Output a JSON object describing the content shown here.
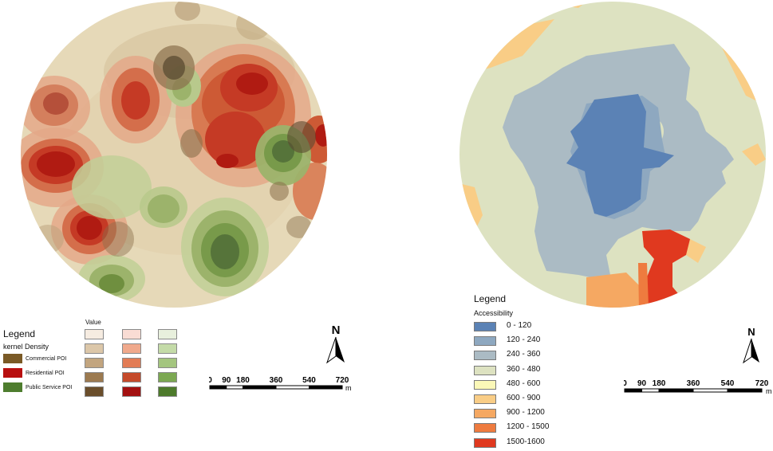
{
  "left_map": {
    "colors": {
      "background": "#e6d9b8",
      "commercial": [
        "#d8c7a3",
        "#b9a07a",
        "#8a6f4b",
        "#5a4a30"
      ],
      "residential": [
        "#e9b08f",
        "#d87a52",
        "#c24a2c",
        "#b01b12"
      ],
      "public_service": [
        "#c2cf98",
        "#9cb36b",
        "#789a4a",
        "#4f6f30"
      ]
    },
    "legend": {
      "title": "Legend",
      "subtitle": "kernel  Density",
      "value_label": "Value",
      "items": [
        {
          "label": "Commercial POI",
          "color": "#7a5a26"
        },
        {
          "label": "Residential POI",
          "color": "#b80f0f"
        },
        {
          "label": "Public Service POI",
          "color": "#4e7d2e"
        }
      ],
      "value_columns": [
        [
          "#f6ece1",
          "#dcc7a9",
          "#c2a57f",
          "#9c7a50",
          "#6a4e2b"
        ],
        [
          "#f9dcd4",
          "#f0a98c",
          "#e27c55",
          "#c54a2a",
          "#a31010"
        ],
        [
          "#e8f0dd",
          "#c4dba8",
          "#a4c57f",
          "#7ca852",
          "#4d7a2b"
        ]
      ]
    },
    "north_label": "N",
    "scale": {
      "ticks": [
        "0",
        "90",
        "180",
        "360",
        "540",
        "720"
      ],
      "unit": "m"
    }
  },
  "right_map": {
    "legend": {
      "title": "Legend",
      "subtitle": "Accessibility",
      "items": [
        {
          "label": "0 - 120",
          "color": "#5b82b5"
        },
        {
          "label": "120 - 240",
          "color": "#8ea8c0"
        },
        {
          "label": "240 - 360",
          "color": "#abbbc4"
        },
        {
          "label": "360 - 480",
          "color": "#dde2c1"
        },
        {
          "label": "480 - 600",
          "color": "#fbf8b8"
        },
        {
          "label": "600 - 900",
          "color": "#f9cd86"
        },
        {
          "label": "900 - 1200",
          "color": "#f5a862"
        },
        {
          "label": "1200 - 1500",
          "color": "#ee7b3f"
        },
        {
          "label": "1500-1600",
          "color": "#e0391f"
        }
      ]
    },
    "north_label": "N",
    "scale": {
      "ticks": [
        "0",
        "90",
        "180",
        "360",
        "540",
        "720"
      ],
      "unit": "m"
    }
  }
}
